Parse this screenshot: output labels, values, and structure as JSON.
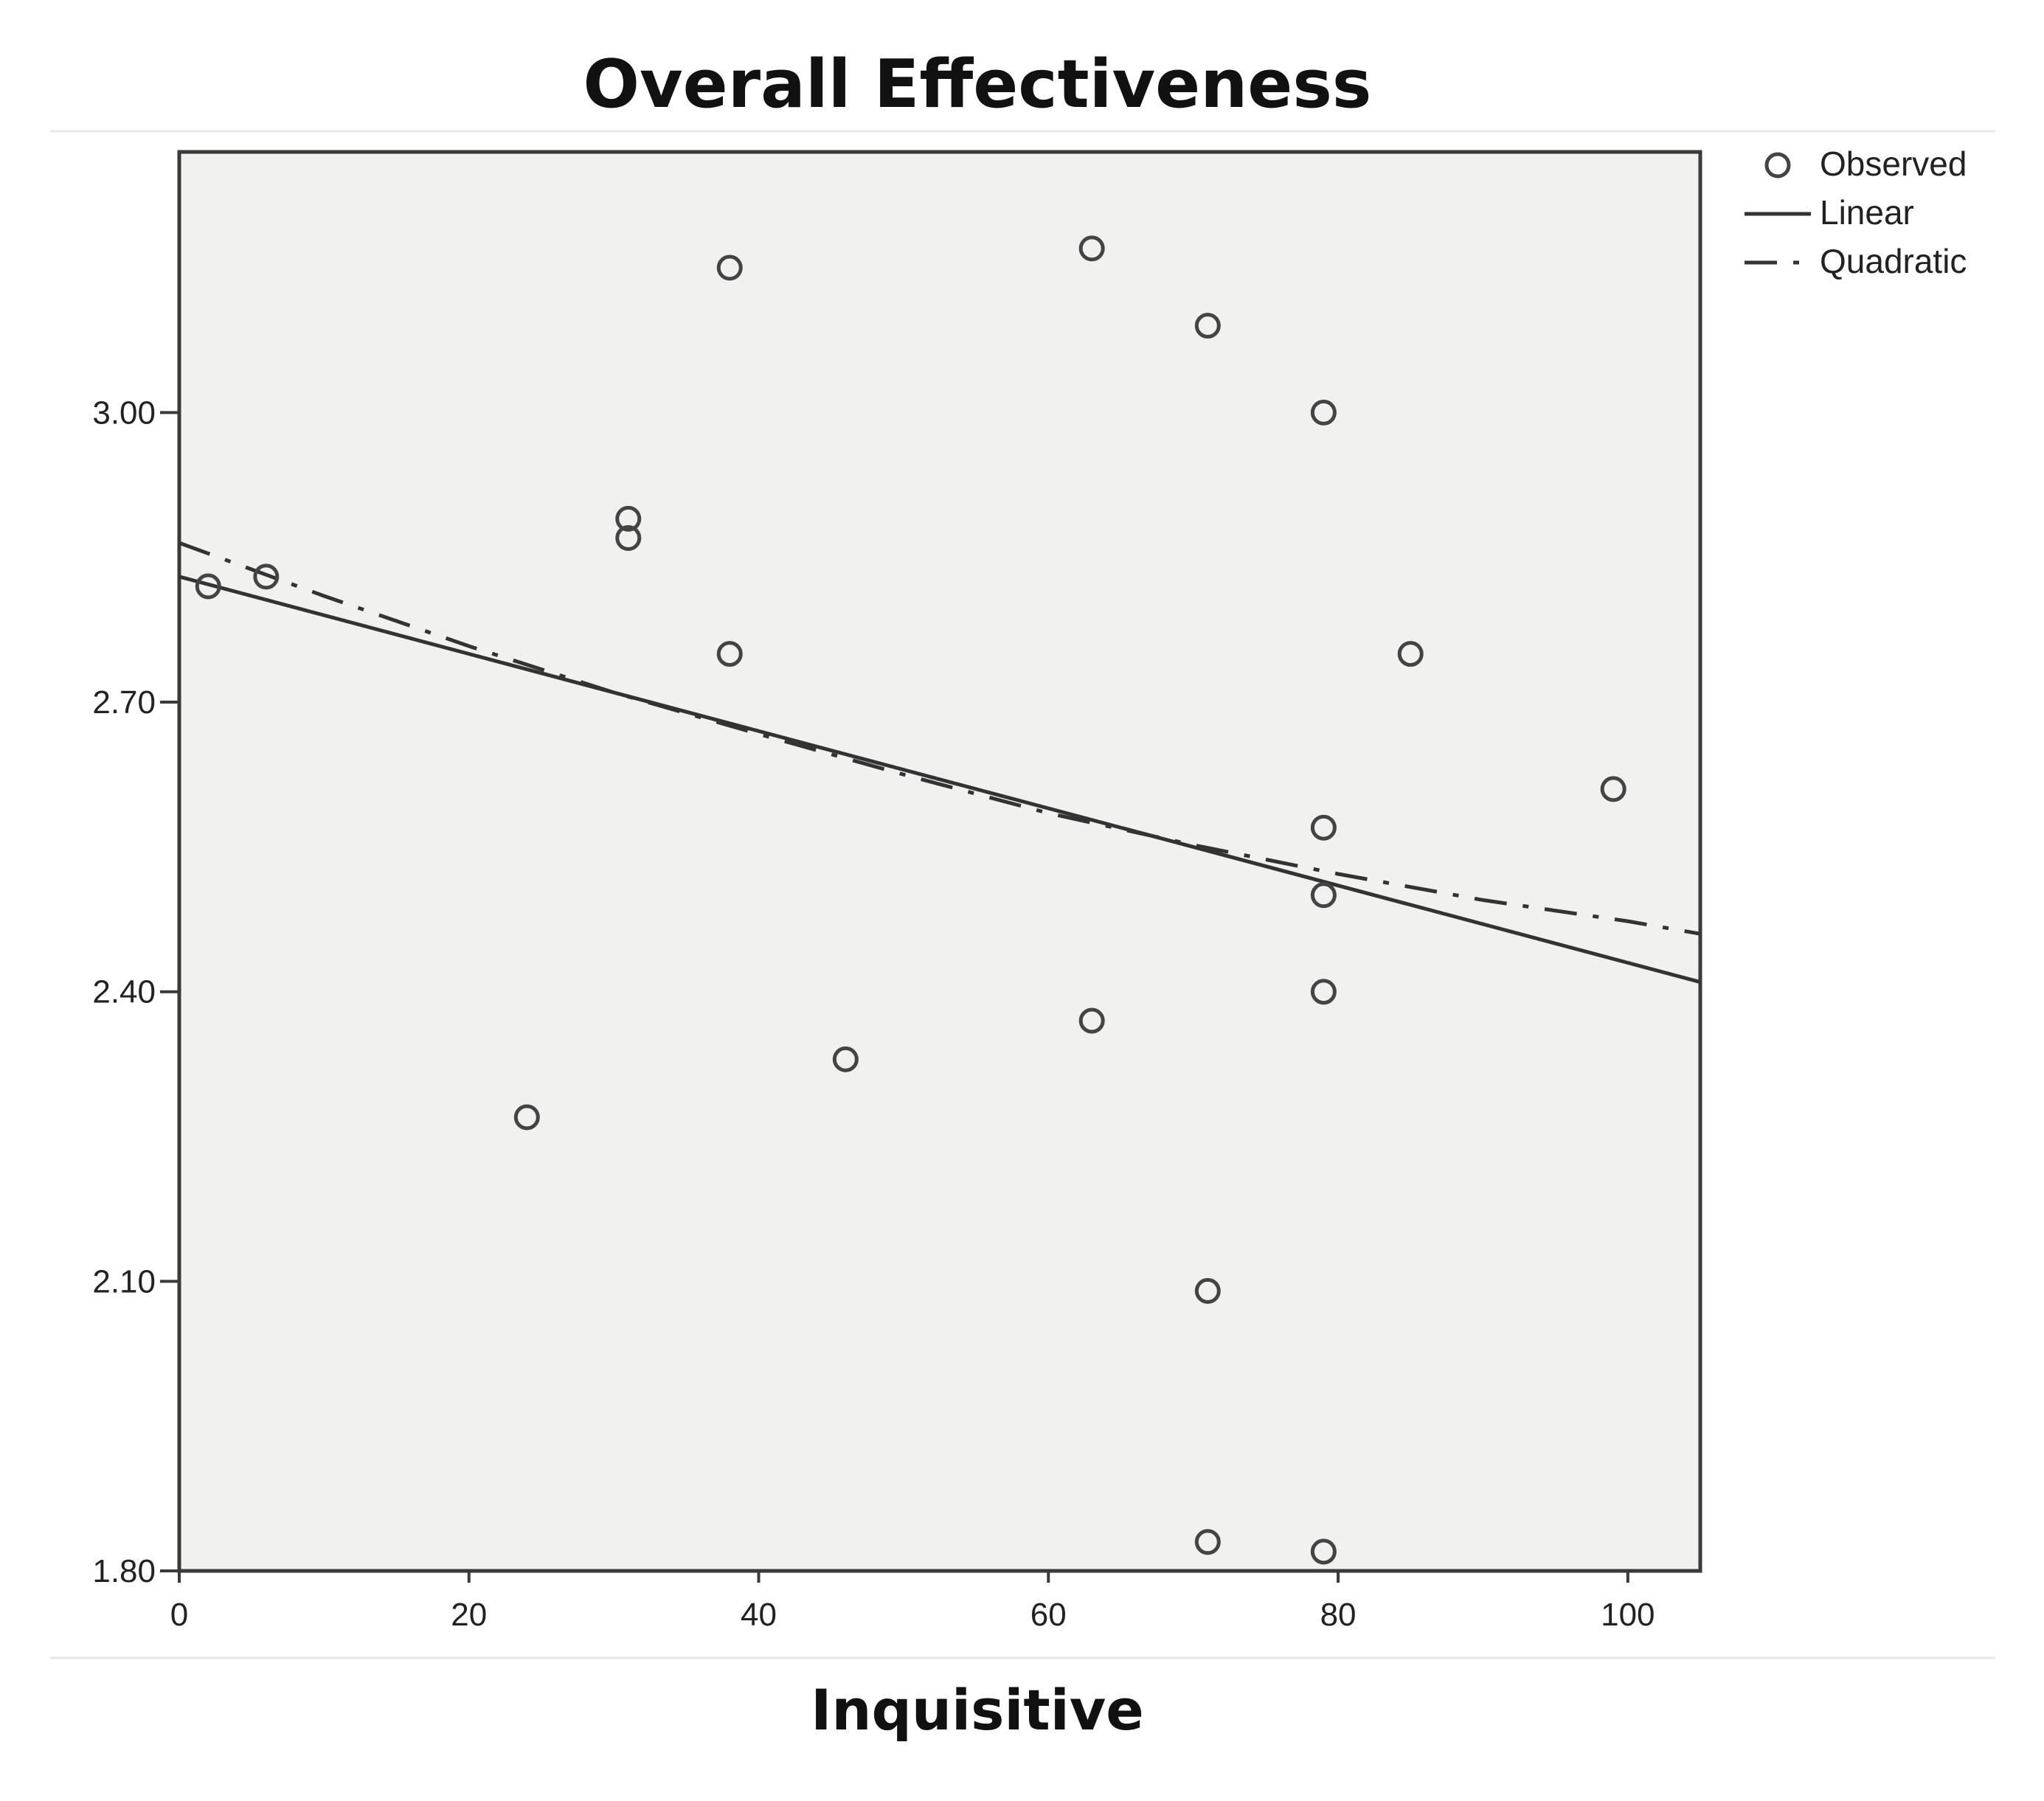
{
  "chart_data": {
    "type": "scatter",
    "title": "Overall Effectiveness",
    "xlabel": "Inquisitive",
    "ylabel": "",
    "xlim": [
      0,
      105
    ],
    "ylim": [
      1.8,
      3.27
    ],
    "xticks": [
      0,
      20,
      40,
      60,
      80,
      100
    ],
    "xtick_labels": [
      "0",
      "20",
      "40",
      "60",
      "80",
      "100"
    ],
    "yticks": [
      1.8,
      2.1,
      2.4,
      2.7,
      3.0
    ],
    "ytick_labels": [
      "1.80",
      "2.10",
      "2.40",
      "2.70",
      "3.00"
    ],
    "grid": false,
    "legend_position": "top-right, outside plot",
    "series": [
      {
        "name": "Observed",
        "kind": "scatter",
        "points": [
          [
            2,
            2.82
          ],
          [
            6,
            2.83
          ],
          [
            24,
            2.27
          ],
          [
            31,
            2.89
          ],
          [
            31,
            2.87
          ],
          [
            38,
            3.15
          ],
          [
            38,
            2.75
          ],
          [
            46,
            2.33
          ],
          [
            63,
            3.17
          ],
          [
            63,
            2.37
          ],
          [
            71,
            3.09
          ],
          [
            71,
            2.09
          ],
          [
            71,
            1.83
          ],
          [
            79,
            3.0
          ],
          [
            79,
            2.57
          ],
          [
            79,
            2.5
          ],
          [
            79,
            2.4
          ],
          [
            79,
            1.82
          ],
          [
            85,
            2.75
          ],
          [
            99,
            2.61
          ]
        ]
      },
      {
        "name": "Linear",
        "kind": "line",
        "style": "solid",
        "x": [
          0,
          105
        ],
        "y": [
          2.83,
          2.41
        ]
      },
      {
        "name": "Quadratic",
        "kind": "line",
        "style": "dash-dot",
        "x": [
          0,
          10,
          20,
          30,
          40,
          50,
          60,
          70,
          80,
          90,
          100,
          105
        ],
        "y": [
          2.865,
          2.81,
          2.758,
          2.71,
          2.667,
          2.625,
          2.585,
          2.552,
          2.522,
          2.495,
          2.473,
          2.46
        ]
      }
    ],
    "colors": {
      "plot_background": "#f1f1f0",
      "frame": "#3a3a3a",
      "marker": "#444444",
      "line": "#333333"
    }
  }
}
